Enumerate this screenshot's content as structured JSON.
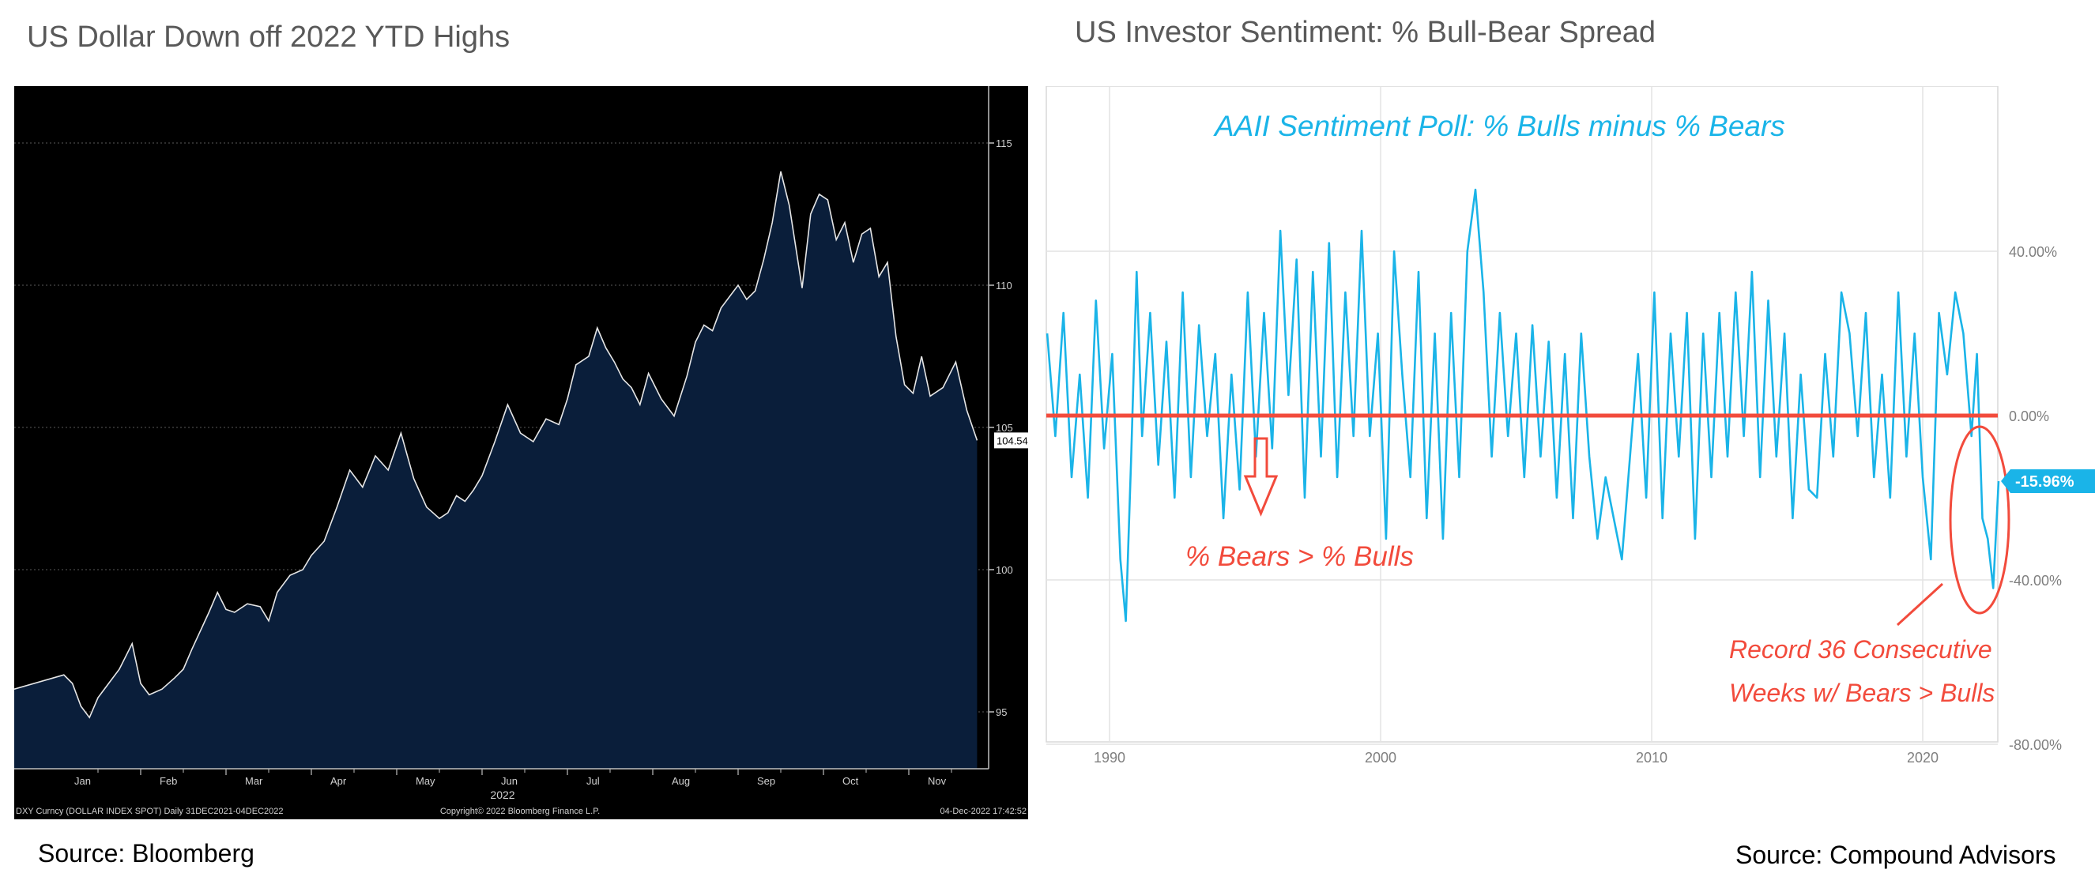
{
  "titles": {
    "left": "US Dollar Down off 2022 YTD Highs",
    "right": "US Investor Sentiment: % Bull-Bear Spread"
  },
  "sources": {
    "left": "Source: Bloomberg",
    "right": "Source: Compound Advisors"
  },
  "bloomberg": {
    "footer_left": "DXY Curncy (DOLLAR INDEX SPOT)  Daily 31DEC2021-04DEC2022",
    "footer_center": "Copyright© 2022 Bloomberg Finance L.P.",
    "footer_right": "04-Dec-2022 17:42:52",
    "year_label": "2022",
    "colors": {
      "background": "#000000",
      "fill": "#0a1e3a",
      "line": "#e6e6e6",
      "grid": "#5a5a5a"
    }
  },
  "compound": {
    "colors": {
      "line": "#1ab4e8",
      "zero_line": "#f24b3c",
      "annotation": "#f24b3c",
      "title": "#1ab4e8",
      "grid": "#e3e3e3"
    }
  },
  "chart_data": [
    {
      "type": "area",
      "title": "US Dollar Down off 2022 YTD Highs",
      "series_name": "DXY Curncy (DOLLAR INDEX SPOT)",
      "x_tick_labels": [
        "Jan",
        "Feb",
        "Mar",
        "Apr",
        "May",
        "Jun",
        "Jul",
        "Aug",
        "Sep",
        "Oct",
        "Nov"
      ],
      "x_year_label": "2022",
      "y_ticks": [
        95,
        100,
        105,
        110,
        115
      ],
      "ylim": [
        93,
        117
      ],
      "last_value_label": "104.545",
      "x_months_from_jan1": [
        0.0,
        0.1,
        0.2,
        0.3,
        0.4,
        0.5,
        0.6,
        0.75,
        0.9,
        1.0,
        1.1,
        1.25,
        1.4,
        1.5,
        1.6,
        1.8,
        1.9,
        2.0,
        2.1,
        2.25,
        2.4,
        2.5,
        2.6,
        2.75,
        2.9,
        3.0,
        3.15,
        3.3,
        3.45,
        3.6,
        3.75,
        3.9,
        4.05,
        4.2,
        4.35,
        4.5,
        4.6,
        4.7,
        4.8,
        4.9,
        5.0,
        5.15,
        5.3,
        5.45,
        5.6,
        5.75,
        5.9,
        6.0,
        6.1,
        6.25,
        6.35,
        6.45,
        6.55,
        6.65,
        6.75,
        6.85,
        6.95,
        7.1,
        7.25,
        7.4,
        7.5,
        7.6,
        7.7,
        7.8,
        7.9,
        8.0,
        8.1,
        8.2,
        8.3,
        8.4,
        8.5,
        8.6,
        8.75,
        8.85,
        8.95,
        9.05,
        9.15,
        9.25,
        9.35,
        9.45,
        9.55,
        9.65,
        9.75,
        9.85,
        9.95,
        10.05,
        10.15,
        10.25,
        10.4,
        10.55,
        10.68,
        10.8
      ],
      "values": [
        95.8,
        96.3,
        96.0,
        95.2,
        94.8,
        95.5,
        95.9,
        96.5,
        97.4,
        96.0,
        95.6,
        95.8,
        96.2,
        96.5,
        97.2,
        98.5,
        99.2,
        98.6,
        98.5,
        98.8,
        98.7,
        98.2,
        99.2,
        99.8,
        100.0,
        100.5,
        101.0,
        102.2,
        103.5,
        102.9,
        104.0,
        103.5,
        104.8,
        103.2,
        102.2,
        101.8,
        102.0,
        102.6,
        102.4,
        102.8,
        103.3,
        104.5,
        105.8,
        104.8,
        104.5,
        105.3,
        105.1,
        106.0,
        107.2,
        107.5,
        108.5,
        107.8,
        107.3,
        106.7,
        106.4,
        105.8,
        106.9,
        106.0,
        105.4,
        106.8,
        108.0,
        108.6,
        108.4,
        109.2,
        109.6,
        110.0,
        109.5,
        109.8,
        110.9,
        112.2,
        114.0,
        112.8,
        109.9,
        112.5,
        113.2,
        113.0,
        111.6,
        112.2,
        110.8,
        111.8,
        112.0,
        110.3,
        110.8,
        108.2,
        106.5,
        106.2,
        107.5,
        106.1,
        106.4,
        107.3,
        105.6,
        104.545
      ]
    },
    {
      "type": "line",
      "title": "AAII Sentiment Poll: % Bulls minus % Bears",
      "x_tick_labels": [
        "1990",
        "2000",
        "2010",
        "2020"
      ],
      "y_tick_labels": [
        "40.00%",
        "0.00%",
        "-40.00%",
        "-80.00%"
      ],
      "y_ticks": [
        40,
        0,
        -40,
        -80
      ],
      "xlim": [
        1987.6,
        2022.9
      ],
      "ylim": [
        -82,
        80
      ],
      "last_value_label": "-15.96%",
      "annotations": [
        "% Bears > % Bulls",
        "Record 36 Consecutive",
        "Weeks w/ Bears > Bulls"
      ],
      "x_years": [
        1987.7,
        1988.0,
        1988.3,
        1988.6,
        1988.9,
        1989.2,
        1989.5,
        1989.8,
        1990.1,
        1990.4,
        1990.6,
        1990.8,
        1991.0,
        1991.2,
        1991.5,
        1991.8,
        1992.1,
        1992.4,
        1992.7,
        1993.0,
        1993.3,
        1993.6,
        1993.9,
        1994.2,
        1994.5,
        1994.8,
        1995.1,
        1995.4,
        1995.7,
        1996.0,
        1996.3,
        1996.6,
        1996.9,
        1997.2,
        1997.5,
        1997.8,
        1998.1,
        1998.4,
        1998.7,
        1999.0,
        1999.3,
        1999.6,
        1999.9,
        2000.2,
        2000.5,
        2000.8,
        2001.1,
        2001.4,
        2001.7,
        2002.0,
        2002.3,
        2002.6,
        2002.9,
        2003.2,
        2003.5,
        2003.8,
        2004.1,
        2004.4,
        2004.7,
        2005.0,
        2005.3,
        2005.6,
        2005.9,
        2006.2,
        2006.5,
        2006.8,
        2007.1,
        2007.4,
        2007.7,
        2008.0,
        2008.3,
        2008.6,
        2008.9,
        2009.2,
        2009.5,
        2009.8,
        2010.1,
        2010.4,
        2010.7,
        2011.0,
        2011.3,
        2011.6,
        2011.9,
        2012.2,
        2012.5,
        2012.8,
        2013.1,
        2013.4,
        2013.7,
        2014.0,
        2014.3,
        2014.6,
        2014.9,
        2015.2,
        2015.5,
        2015.8,
        2016.1,
        2016.4,
        2016.7,
        2017.0,
        2017.3,
        2017.6,
        2017.9,
        2018.2,
        2018.5,
        2018.8,
        2019.1,
        2019.4,
        2019.7,
        2020.0,
        2020.3,
        2020.6,
        2020.9,
        2021.2,
        2021.5,
        2021.8,
        2022.0,
        2022.2,
        2022.4,
        2022.6,
        2022.8
      ],
      "values": [
        20,
        -5,
        25,
        -15,
        10,
        -20,
        28,
        -8,
        15,
        -35,
        -50,
        -10,
        35,
        -5,
        25,
        -12,
        18,
        -20,
        30,
        -15,
        22,
        -5,
        15,
        -25,
        10,
        -18,
        30,
        -10,
        25,
        -8,
        45,
        5,
        38,
        -20,
        35,
        -10,
        42,
        -15,
        30,
        -5,
        45,
        -5,
        20,
        -30,
        40,
        10,
        -15,
        35,
        -25,
        20,
        -30,
        25,
        -15,
        40,
        55,
        30,
        -10,
        25,
        -5,
        20,
        -15,
        22,
        -10,
        18,
        -20,
        15,
        -25,
        20,
        -10,
        -30,
        -15,
        -25,
        -35,
        -10,
        15,
        -20,
        30,
        -25,
        20,
        -10,
        25,
        -30,
        20,
        -15,
        25,
        -10,
        30,
        -5,
        35,
        -15,
        28,
        -10,
        20,
        -25,
        10,
        -18,
        -20,
        15,
        -10,
        30,
        20,
        -5,
        25,
        -15,
        10,
        -20,
        30,
        -10,
        20,
        -15,
        -35,
        25,
        10,
        30,
        20,
        -5,
        15,
        -25,
        -30,
        -42,
        -15.96
      ]
    }
  ]
}
